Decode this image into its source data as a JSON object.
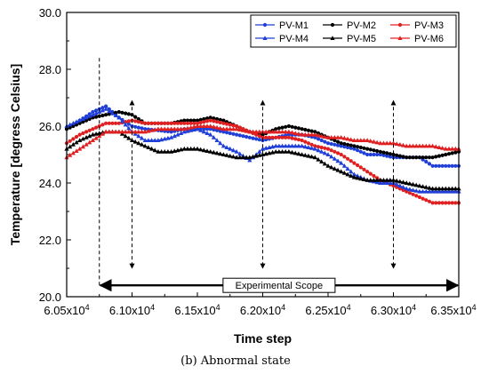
{
  "chart_data": {
    "type": "line",
    "xlabel": "Time step",
    "ylabel": "Temperature [degress Celsius]",
    "caption": "(b) Abnormal state",
    "xlim": [
      60500,
      63500
    ],
    "ylim": [
      20.0,
      30.0
    ],
    "x_ticks": [
      60500,
      61000,
      61500,
      62000,
      62500,
      63000,
      63500
    ],
    "x_tick_labels": [
      "6.05x10^4",
      "6.10x10^4",
      "6.15x10^4",
      "6.20x10^4",
      "6.25x10^4",
      "6.30x10^4",
      "6.35x10^4"
    ],
    "y_ticks": [
      20.0,
      22.0,
      24.0,
      26.0,
      28.0,
      30.0
    ],
    "y_tick_labels": [
      "20.0",
      "22.0",
      "24.0",
      "26.0",
      "28.0",
      "30.0"
    ],
    "grid": false,
    "legend_position": "top-right",
    "x": [
      60500,
      60600,
      60700,
      60800,
      60900,
      61000,
      61100,
      61200,
      61300,
      61400,
      61500,
      61600,
      61700,
      61800,
      61900,
      62000,
      62100,
      62200,
      62300,
      62400,
      62500,
      62600,
      62700,
      62800,
      62900,
      63000,
      63100,
      63200,
      63300,
      63400,
      63500
    ],
    "series": [
      {
        "name": "PV-M1",
        "color": "#1f3fd8",
        "marker": "circle",
        "values": [
          25.9,
          26.2,
          26.5,
          26.7,
          26.3,
          26.0,
          25.9,
          25.85,
          25.8,
          25.9,
          25.9,
          25.9,
          25.8,
          25.7,
          25.6,
          25.5,
          25.6,
          25.7,
          25.7,
          25.6,
          25.4,
          25.3,
          25.2,
          25.0,
          25.0,
          24.9,
          24.9,
          24.9,
          24.6,
          24.6,
          24.6
        ]
      },
      {
        "name": "PV-M2",
        "color": "#000000",
        "marker": "circle",
        "values": [
          25.9,
          26.1,
          26.3,
          26.4,
          26.5,
          26.4,
          26.1,
          26.1,
          26.1,
          26.2,
          26.2,
          26.3,
          26.2,
          26.0,
          25.8,
          25.7,
          25.9,
          26.0,
          25.9,
          25.8,
          25.6,
          25.4,
          25.3,
          25.2,
          25.1,
          25.0,
          24.9,
          24.9,
          24.9,
          25.0,
          25.1
        ]
      },
      {
        "name": "PV-M3",
        "color": "#e02020",
        "marker": "circle",
        "values": [
          25.4,
          25.7,
          25.9,
          26.1,
          26.1,
          26.2,
          26.1,
          26.1,
          26.1,
          26.1,
          26.1,
          26.2,
          26.1,
          26.0,
          25.8,
          25.6,
          25.6,
          25.6,
          25.5,
          25.3,
          25.2,
          25.0,
          24.7,
          24.4,
          24.1,
          23.9,
          23.7,
          23.5,
          23.3,
          23.3,
          23.3
        ]
      },
      {
        "name": "PV-M4",
        "color": "#1f3fd8",
        "marker": "triangle",
        "values": [
          26.0,
          26.2,
          26.4,
          26.6,
          26.3,
          25.8,
          25.5,
          25.5,
          25.6,
          25.8,
          25.9,
          25.7,
          25.3,
          25.1,
          24.8,
          25.2,
          25.3,
          25.3,
          25.3,
          25.2,
          25.0,
          24.7,
          24.3,
          24.1,
          24.0,
          24.0,
          23.8,
          23.7,
          23.7,
          23.7,
          23.7
        ]
      },
      {
        "name": "PV-M5",
        "color": "#000000",
        "marker": "triangle",
        "values": [
          25.2,
          25.5,
          25.7,
          25.8,
          25.8,
          25.5,
          25.3,
          25.1,
          25.1,
          25.2,
          25.2,
          25.1,
          25.0,
          24.9,
          24.9,
          25.0,
          25.1,
          25.1,
          25.0,
          24.9,
          24.6,
          24.4,
          24.2,
          24.1,
          24.1,
          24.1,
          24.0,
          23.9,
          23.8,
          23.8,
          23.8
        ]
      },
      {
        "name": "PV-M6",
        "color": "#e02020",
        "marker": "triangle",
        "values": [
          24.9,
          25.2,
          25.5,
          25.8,
          25.8,
          25.8,
          25.8,
          25.9,
          25.9,
          25.9,
          26.0,
          26.0,
          25.9,
          25.9,
          25.8,
          25.8,
          25.8,
          25.8,
          25.7,
          25.7,
          25.6,
          25.6,
          25.5,
          25.5,
          25.4,
          25.4,
          25.3,
          25.3,
          25.3,
          25.2,
          25.2
        ]
      }
    ],
    "annotations": {
      "experimental_scope": {
        "label": "Experimental Scope",
        "x_start": 60750,
        "x_end": 63500,
        "y": 20.4
      },
      "dashed_markers": [
        {
          "x": 60750,
          "y_top": 28.4,
          "y_bottom": 20.4
        },
        {
          "x": 61000,
          "y_top": 26.9,
          "y_bottom": 21.0
        },
        {
          "x": 62000,
          "y_top": 26.9,
          "y_bottom": 21.0
        },
        {
          "x": 63000,
          "y_top": 26.9,
          "y_bottom": 21.0
        },
        {
          "x": 63500,
          "y_top": 28.4,
          "y_bottom": 20.4
        }
      ]
    }
  }
}
